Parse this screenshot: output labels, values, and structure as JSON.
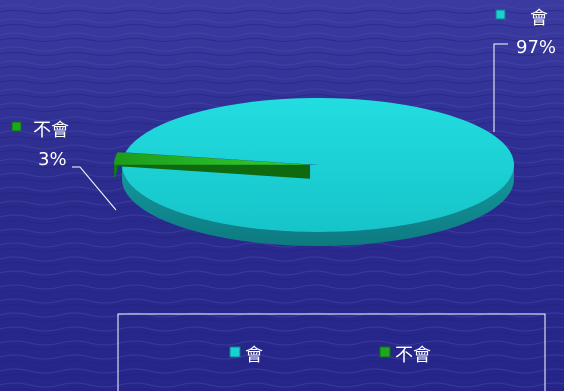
{
  "chart_data": {
    "type": "pie",
    "categories": [
      "會",
      "不會"
    ],
    "values": [
      97,
      3
    ],
    "data_labels": [
      "97%",
      "3%"
    ],
    "colors": [
      "#1ccfd4",
      "#1fa81f"
    ],
    "legend": {
      "placement": "bottom",
      "entries": [
        "會",
        "不會"
      ]
    },
    "title": ""
  }
}
